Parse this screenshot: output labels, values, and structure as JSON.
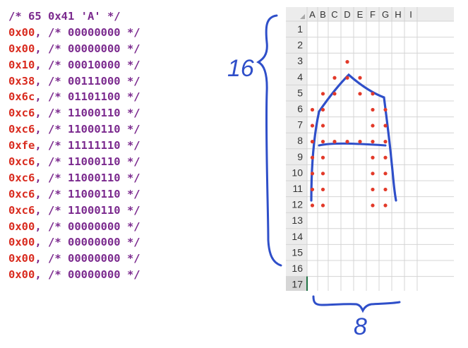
{
  "code": {
    "header": "/* 65 0x41 'A' */",
    "rows": [
      {
        "hex": "0x00",
        "bits": "/* 00000000 */"
      },
      {
        "hex": "0x00",
        "bits": "/* 00000000 */"
      },
      {
        "hex": "0x10",
        "bits": "/* 00010000 */"
      },
      {
        "hex": "0x38",
        "bits": "/* 00111000 */"
      },
      {
        "hex": "0x6c",
        "bits": "/* 01101100 */"
      },
      {
        "hex": "0xc6",
        "bits": "/* 11000110 */"
      },
      {
        "hex": "0xc6",
        "bits": "/* 11000110 */"
      },
      {
        "hex": "0xfe",
        "bits": "/* 11111110 */"
      },
      {
        "hex": "0xc6",
        "bits": "/* 11000110 */"
      },
      {
        "hex": "0xc6",
        "bits": "/* 11000110 */"
      },
      {
        "hex": "0xc6",
        "bits": "/* 11000110 */"
      },
      {
        "hex": "0xc6",
        "bits": "/* 11000110 */"
      },
      {
        "hex": "0x00",
        "bits": "/* 00000000 */"
      },
      {
        "hex": "0x00",
        "bits": "/* 00000000 */"
      },
      {
        "hex": "0x00",
        "bits": "/* 00000000 */"
      },
      {
        "hex": "0x00",
        "bits": "/* 00000000 */"
      }
    ]
  },
  "sheet": {
    "columns": [
      "A",
      "B",
      "C",
      "D",
      "E",
      "F",
      "G",
      "H",
      "I"
    ],
    "rows": [
      "1",
      "2",
      "3",
      "4",
      "5",
      "6",
      "7",
      "8",
      "9",
      "10",
      "11",
      "12",
      "13",
      "14",
      "15",
      "16",
      "17"
    ],
    "selected_row": "17"
  },
  "annotations": {
    "height_label": "16",
    "width_label": "8"
  },
  "colors": {
    "hex": "#d92b1f",
    "comment": "#7b2a8e",
    "ink": "#2f4fc9",
    "dot": "#e23a2a",
    "grid": "#d4d4d4",
    "header_bg": "#ececec"
  }
}
